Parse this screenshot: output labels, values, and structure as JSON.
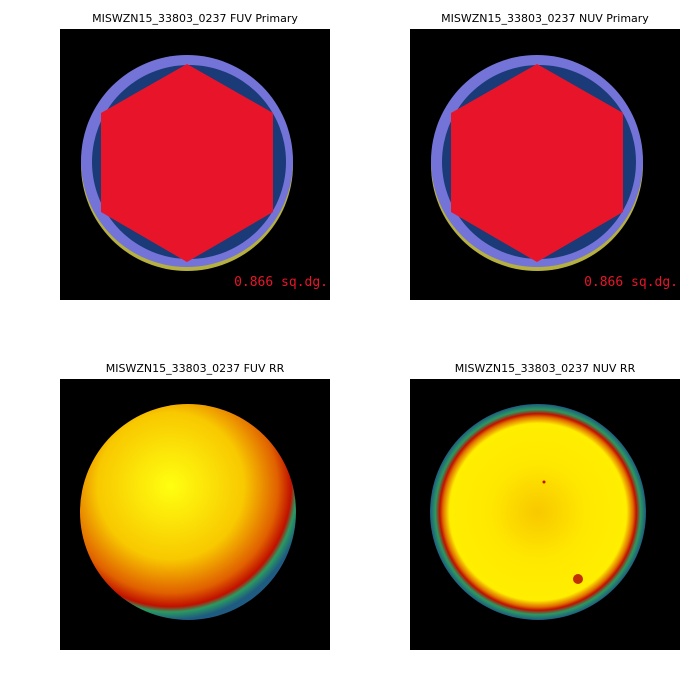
{
  "panels": [
    {
      "title": "MISWZN15_33803_0237 FUV Primary",
      "annotation": "0.866 sq.dg."
    },
    {
      "title": "MISWZN15_33803_0237 NUV Primary",
      "annotation": "0.866 sq.dg."
    },
    {
      "title": "MISWZN15_33803_0237 FUV RR"
    },
    {
      "title": "MISWZN15_33803_0237 NUV RR"
    }
  ]
}
